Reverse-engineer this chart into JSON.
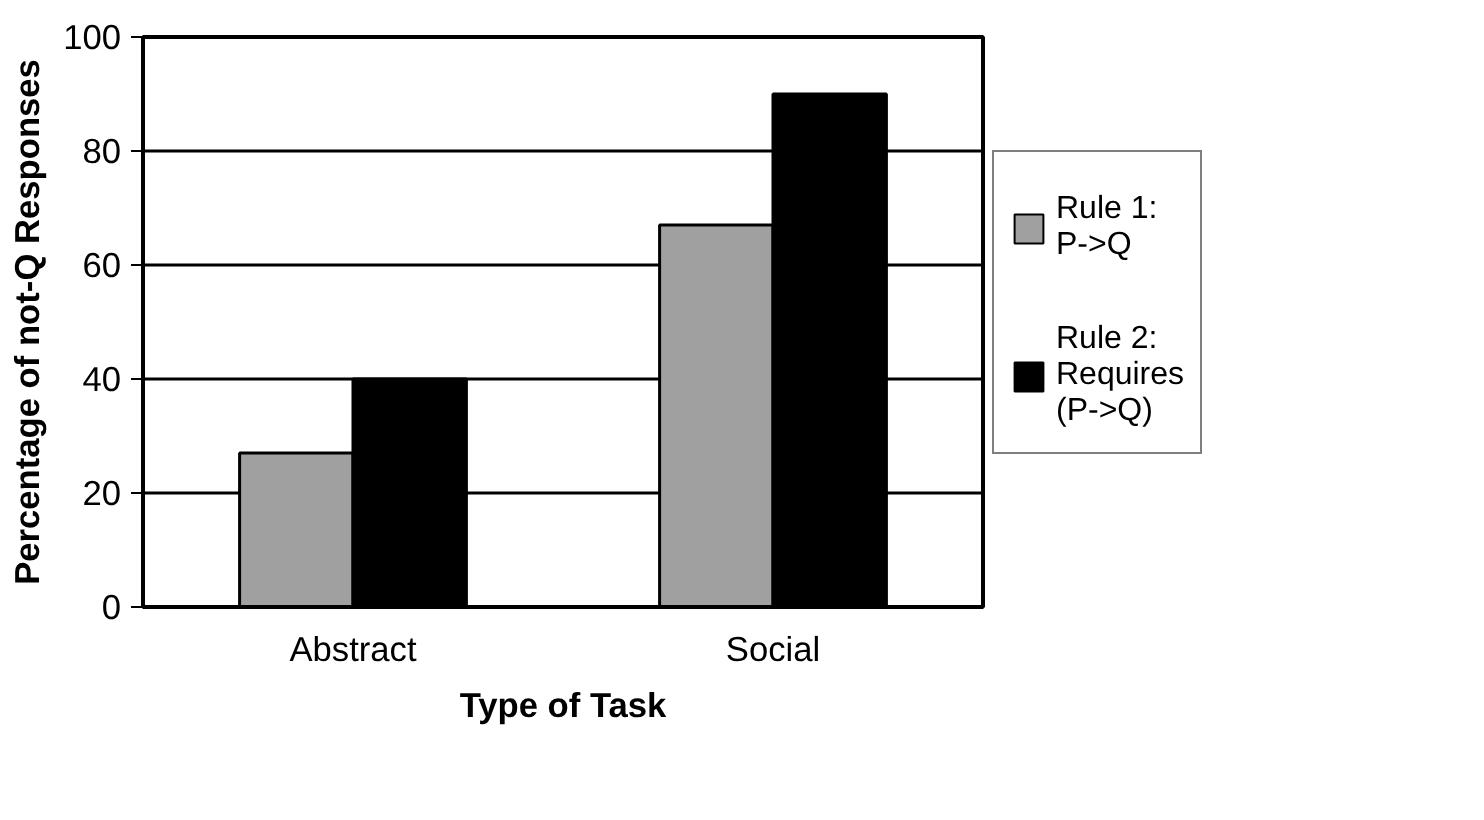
{
  "chart_data": {
    "type": "bar",
    "xlabel": "Type of Task",
    "ylabel": "Percentage of not-Q Responses",
    "categories": [
      "Abstract",
      "Social"
    ],
    "series": [
      {
        "name": "Rule 1:\nP->Q",
        "color": "#a0a0a0",
        "values": [
          27,
          67
        ]
      },
      {
        "name": "Rule 2:\nRequires\n(P->Q)",
        "color": "#000000",
        "values": [
          40,
          90
        ]
      }
    ],
    "ylim": [
      0,
      100
    ],
    "yticks": [
      0,
      20,
      40,
      60,
      80,
      100
    ],
    "grid": "y",
    "legend": "right"
  }
}
